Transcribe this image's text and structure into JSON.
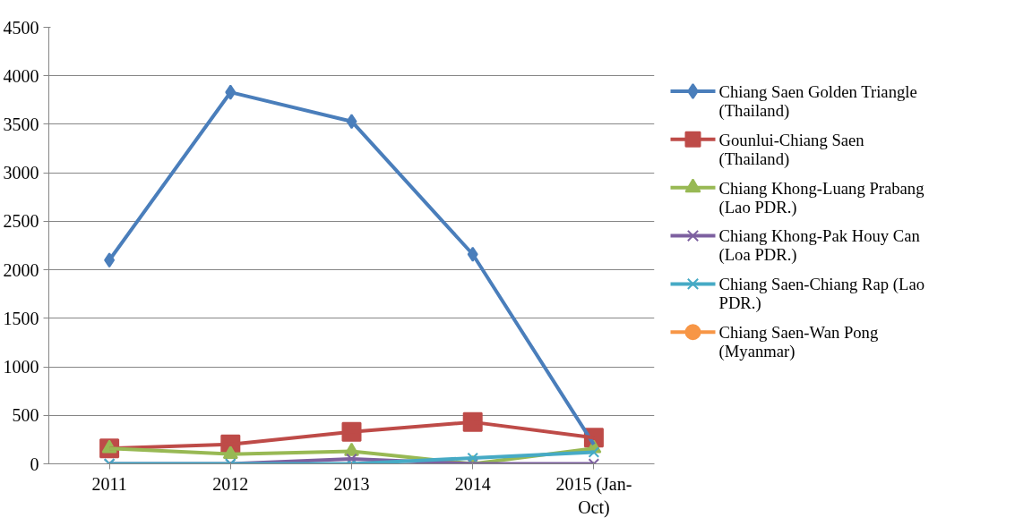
{
  "chart_data": {
    "type": "line",
    "categories": [
      "2011",
      "2012",
      "2013",
      "2014",
      "2015 (Jan-Oct)"
    ],
    "ylim": [
      0,
      4500
    ],
    "yticks": [
      0,
      500,
      1000,
      1500,
      2000,
      2500,
      3000,
      3500,
      4000,
      4500
    ],
    "grid": "y",
    "legend": "right",
    "line_style": "solid",
    "series": [
      {
        "name": "Chiang Saen Golden Triangle (Thailand)",
        "color": "#4a7ebb",
        "marker": "diamond",
        "values": [
          2100,
          3830,
          3530,
          2160,
          200
        ]
      },
      {
        "name": "Gounlui-Chiang Saen (Thailand)",
        "color": "#be4b48",
        "marker": "square",
        "values": [
          160,
          200,
          330,
          430,
          270
        ]
      },
      {
        "name": "Chiang Khong-Luang Prabang (Lao PDR.)",
        "color": "#98b954",
        "marker": "triangle",
        "values": [
          160,
          100,
          130,
          0,
          160
        ]
      },
      {
        "name": "Chiang Khong-Pak Houy Can (Loa PDR.)",
        "color": "#7d60a0",
        "marker": "cross",
        "values": [
          0,
          0,
          50,
          0,
          0
        ]
      },
      {
        "name": "Chiang Saen-Chiang Rap (Lao PDR.)",
        "color": "#46aac5",
        "marker": "cross",
        "values": [
          0,
          0,
          0,
          60,
          120
        ]
      },
      {
        "name": "Chiang Saen-Wan Pong (Myanmar)",
        "color": "#f79646",
        "marker": "circle",
        "values": [
          null,
          null,
          null,
          null,
          null
        ]
      }
    ]
  }
}
